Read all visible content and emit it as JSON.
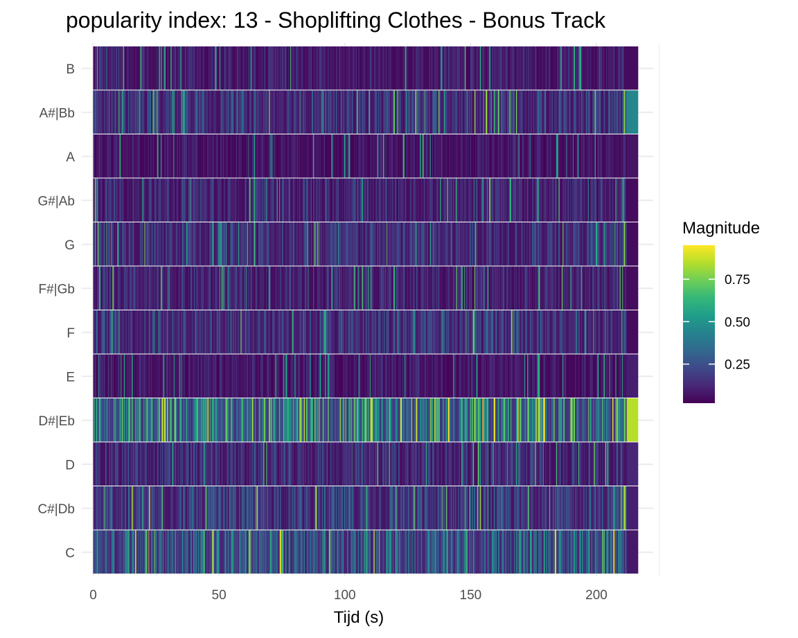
{
  "chart_data": {
    "type": "heatmap",
    "title": "popularity index:  13  -  Shoplifting Clothes - Bonus Track",
    "xlabel": "Tijd (s)",
    "ylabel": "",
    "xlim": [
      0,
      225
    ],
    "x_ticks": [
      0,
      50,
      100,
      150,
      200
    ],
    "x_tick_labels": [
      "0",
      "50",
      "100",
      "150",
      "200"
    ],
    "duration_s": 216.5,
    "y_categories": [
      "C",
      "C#|Db",
      "D",
      "D#|Eb",
      "E",
      "F",
      "F#|Gb",
      "G",
      "G#|Ab",
      "A",
      "A#|Bb",
      "B"
    ],
    "legend": {
      "title": "Magnitude",
      "ticks": [
        0.25,
        0.5,
        0.75
      ],
      "tick_labels": [
        "0.25",
        "0.50",
        "0.75"
      ],
      "range": [
        0.02,
        0.95
      ],
      "position": "right"
    },
    "colormap": [
      "#440154",
      "#482878",
      "#3e4989",
      "#31688e",
      "#26828e",
      "#1f9e89",
      "#35b779",
      "#6ece58",
      "#b5de2b",
      "#fde725"
    ],
    "pitch_mean_magnitude": {
      "C": 0.4,
      "C#|Db": 0.26,
      "D": 0.2,
      "D#|Eb": 0.55,
      "E": 0.12,
      "F": 0.24,
      "F#|Gb": 0.17,
      "G": 0.22,
      "G#|Ab": 0.18,
      "A": 0.11,
      "A#|Bb": 0.24,
      "B": 0.14
    },
    "end_segment_magnitude": {
      "C": 0.08,
      "C#|Db": 0.1,
      "D": 0.12,
      "D#|Eb": 0.85,
      "E": 0.1,
      "F": 0.05,
      "F#|Gb": 0.05,
      "G": 0.05,
      "G#|Ab": 0.05,
      "A": 0.07,
      "A#|Bb": 0.45,
      "B": 0.05
    },
    "grid": true,
    "segments_count": 620
  }
}
